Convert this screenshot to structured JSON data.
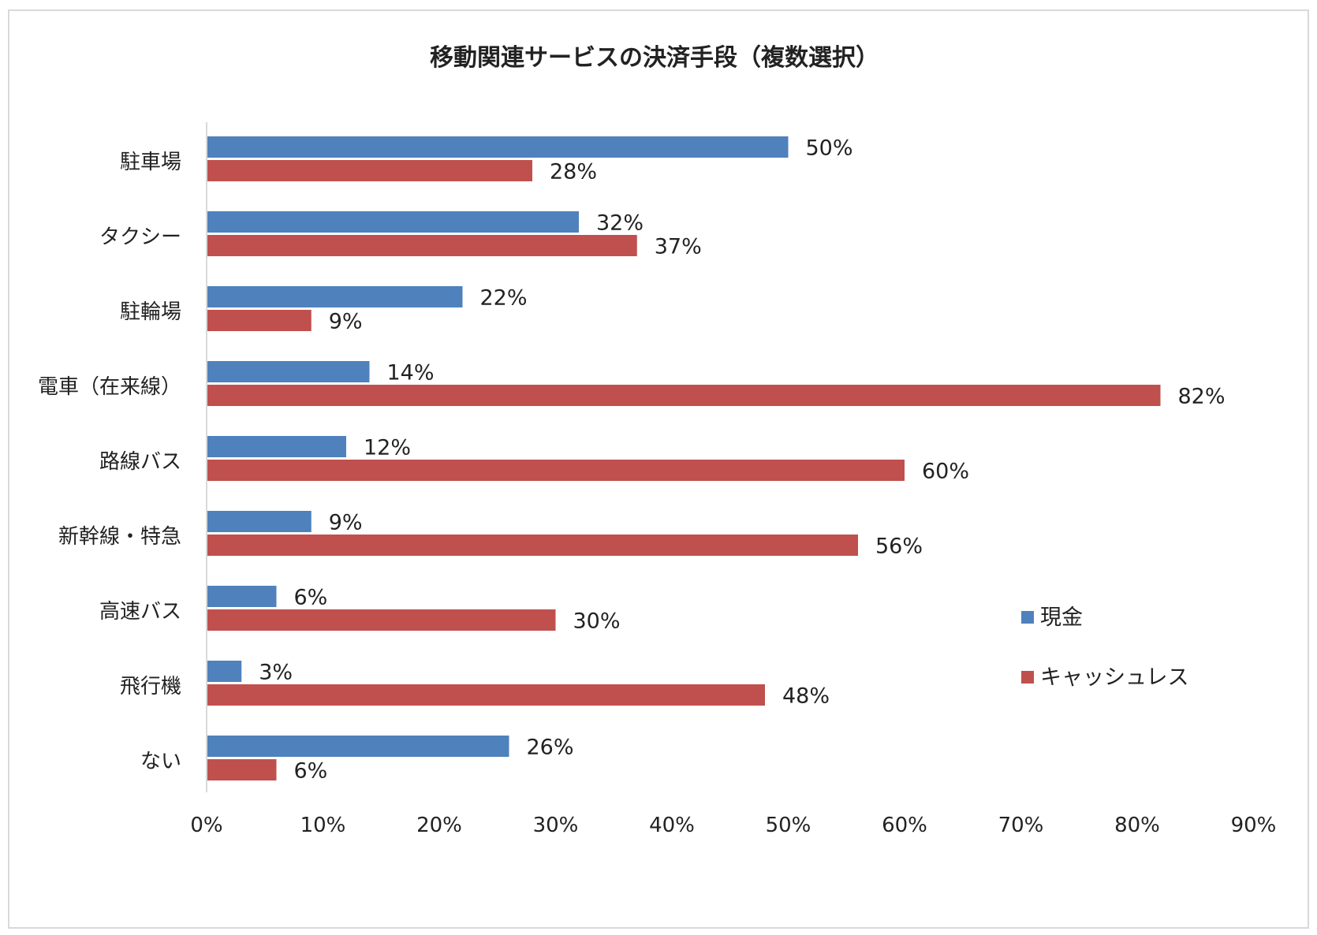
{
  "chart_data": {
    "type": "bar",
    "orientation": "horizontal",
    "title": "移動関連サービスの決済手段（複数選択）",
    "categories": [
      "駐車場",
      "タクシー",
      "駐輪場",
      "電車（在来線）",
      "路線バス",
      "新幹線・特急",
      "高速バス",
      "飛行機",
      "ない"
    ],
    "series": [
      {
        "name": "現金",
        "color": "#4f81bd",
        "values": [
          50,
          32,
          22,
          14,
          12,
          9,
          6,
          3,
          26
        ],
        "labels": [
          "50%",
          "32%",
          "22%",
          "14%",
          "12%",
          "9%",
          "6%",
          "3%",
          "26%"
        ]
      },
      {
        "name": "キャッシュレス",
        "color": "#c0504d",
        "values": [
          28,
          37,
          9,
          82,
          60,
          56,
          30,
          48,
          6
        ],
        "labels": [
          "28%",
          "37%",
          "9%",
          "82%",
          "60%",
          "56%",
          "30%",
          "48%",
          "6%"
        ]
      }
    ],
    "xlim": [
      0,
      90
    ],
    "xticks": [
      "0%",
      "10%",
      "20%",
      "30%",
      "40%",
      "50%",
      "60%",
      "70%",
      "80%",
      "90%"
    ],
    "grid": false,
    "legend_position": "right"
  }
}
